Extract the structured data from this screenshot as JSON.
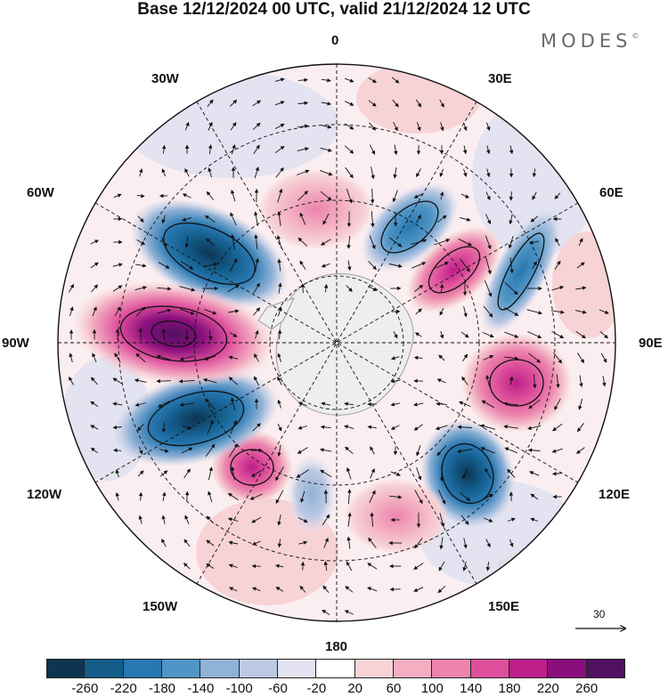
{
  "header": {
    "title": "Base 12/12/2024 00 UTC, valid 21/12/2024 12 UTC",
    "brand": "MODES",
    "brand_mark": "©"
  },
  "map": {
    "projection": "south-polar-stereographic",
    "longitude_labels": {
      "deg0": "0",
      "deg30e": "30E",
      "deg60e": "60E",
      "deg90e": "90E",
      "deg120e": "120E",
      "deg150e": "150E",
      "deg180": "180",
      "deg150w": "150W",
      "deg120w": "120W",
      "deg90w": "90W",
      "deg60w": "60W",
      "deg30w": "30W"
    },
    "reference_vector_label": "30",
    "anomaly_centers": [
      {
        "location": "30W-60W",
        "sign": "negative",
        "magnitude": -200
      },
      {
        "location": "0-15E near pole",
        "sign": "positive",
        "magnitude": 120
      },
      {
        "location": "30E",
        "sign": "negative",
        "magnitude": -180
      },
      {
        "location": "45E",
        "sign": "positive",
        "magnitude": 220
      },
      {
        "location": "60E",
        "sign": "negative",
        "magnitude": -180
      },
      {
        "location": "90E-100E",
        "sign": "positive",
        "magnitude": 180
      },
      {
        "location": "130E",
        "sign": "negative",
        "magnitude": -240
      },
      {
        "location": "170E",
        "sign": "positive",
        "magnitude": 140
      },
      {
        "location": "160W",
        "sign": "negative",
        "magnitude": -100
      },
      {
        "location": "140W",
        "sign": "positive",
        "magnitude": 200
      },
      {
        "location": "110W",
        "sign": "negative",
        "magnitude": -240
      },
      {
        "location": "90W",
        "sign": "positive",
        "magnitude": 270
      }
    ]
  },
  "colorbar": {
    "ticks": [
      "-260",
      "-220",
      "-180",
      "-140",
      "-100",
      "-60",
      "-20",
      "20",
      "60",
      "100",
      "140",
      "180",
      "220",
      "260"
    ],
    "colors": [
      "#0d3552",
      "#135c8a",
      "#2777b0",
      "#4f95c6",
      "#8fb2d7",
      "#bcc9e3",
      "#e3e3f1",
      "#ffffff",
      "#f7d3d6",
      "#f3aec2",
      "#ec84ad",
      "#de4f9b",
      "#bc1e8a",
      "#8a0f7d",
      "#521062"
    ]
  }
}
